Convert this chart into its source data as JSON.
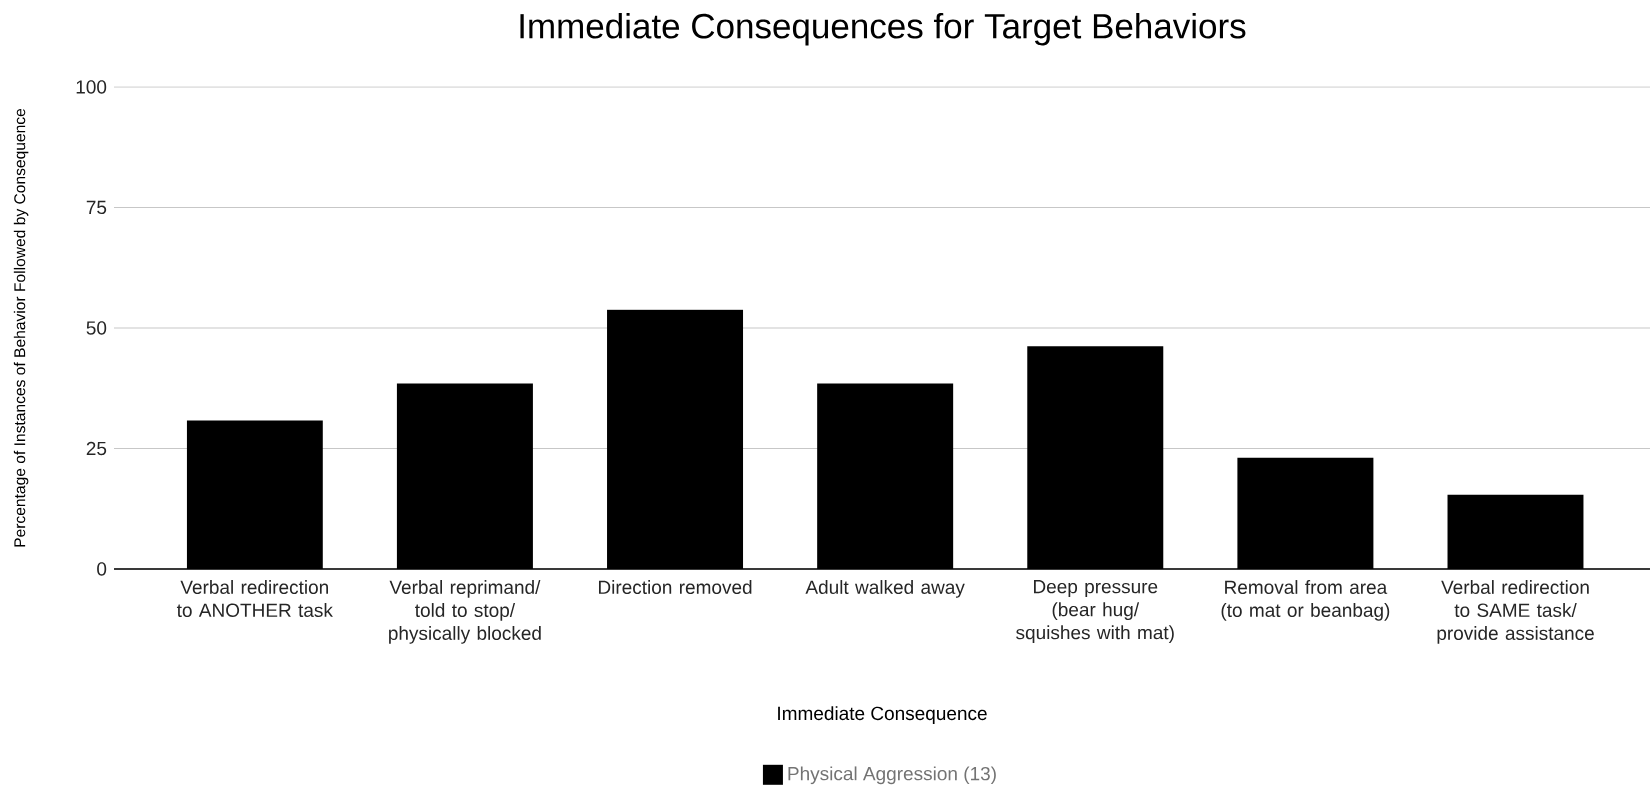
{
  "chart_data": {
    "type": "bar",
    "title": "Immediate Consequences for Target Behaviors",
    "xlabel": "Immediate Consequence",
    "ylabel": "Percentage of Instances of Behavior Followed by Consequence",
    "categories": [
      "Verbal redirection to ANOTHER task",
      "Verbal reprimand/ told to stop/ physically blocked",
      "Direction removed",
      "Adult walked away",
      "Deep pressure (bear hug/ squishes with mat)",
      "Removal from area (to mat or beanbag)",
      "Verbal redirection to SAME task/ provide assistance"
    ],
    "series": [
      {
        "name": "Physical Aggression (13)",
        "color": "#000000",
        "values": [
          30.8,
          38.5,
          53.8,
          38.5,
          46.2,
          23.1,
          15.4
        ]
      }
    ],
    "ylim": [
      0,
      100
    ],
    "yticks": [
      0,
      25,
      50,
      75,
      100
    ],
    "grid": "y",
    "legend": "bottom"
  }
}
